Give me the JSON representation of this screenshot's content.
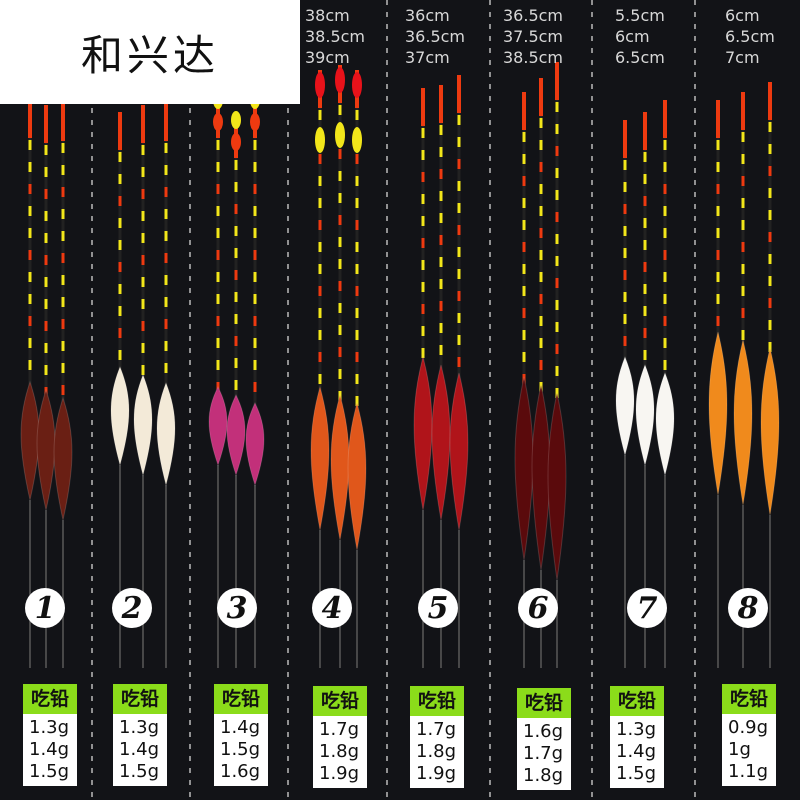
{
  "watermark": "和兴达",
  "weight_header": "吃铅",
  "groups": [
    {
      "number": "1",
      "lengths": [],
      "weights": [
        "1.3g",
        "1.4g",
        "1.5g"
      ],
      "body_color": "#6a1f14"
    },
    {
      "number": "2",
      "lengths": [],
      "weights": [
        "1.3g",
        "1.4g",
        "1.5g"
      ],
      "body_color": "#f3ead8"
    },
    {
      "number": "3",
      "lengths": [],
      "weights": [
        "1.4g",
        "1.5g",
        "1.6g"
      ],
      "body_color": "#c2307a"
    },
    {
      "number": "4",
      "lengths": [
        "38cm",
        "38.5cm",
        "39cm"
      ],
      "weights": [
        "1.7g",
        "1.8g",
        "1.9g"
      ],
      "body_color": "#e0571b"
    },
    {
      "number": "5",
      "lengths": [
        "36cm",
        "36.5cm",
        "37cm"
      ],
      "weights": [
        "1.7g",
        "1.8g",
        "1.9g"
      ],
      "body_color": "#b0141a"
    },
    {
      "number": "6",
      "lengths": [
        "36.5cm",
        "37.5cm",
        "38.5cm"
      ],
      "weights": [
        "1.6g",
        "1.7g",
        "1.8g"
      ],
      "body_color": "#5a0a0c"
    },
    {
      "number": "7",
      "lengths": [
        "5.5cm",
        "6cm",
        "6.5cm"
      ],
      "weights": [
        "1.3g",
        "1.4g",
        "1.5g"
      ],
      "body_color": "#f8f6f2"
    },
    {
      "number": "8",
      "lengths": [
        "6cm",
        "6.5cm",
        "7cm"
      ],
      "weights": [
        "0.9g",
        "1g",
        "1.1g"
      ],
      "body_color": "#f08a1c"
    }
  ],
  "colors": {
    "background": "#121317",
    "label_green": "#8bdc1a",
    "tip_red": "#ee3a10",
    "segment_yellow": "#f2e61a"
  }
}
